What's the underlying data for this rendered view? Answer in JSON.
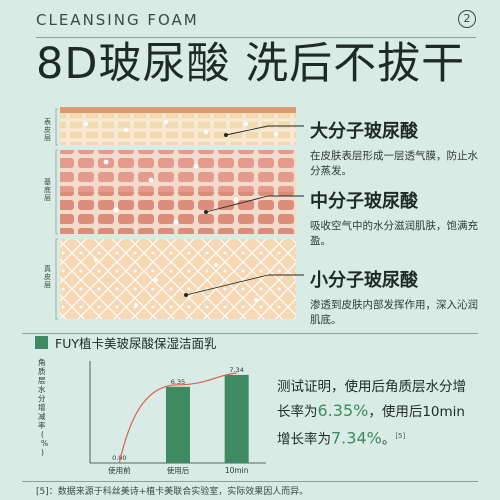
{
  "header": {
    "title": "CLEANSING FOAM",
    "page_number": "2"
  },
  "headline": "8D玻尿酸 洗后不拔干",
  "layers": [
    {
      "label": "表皮层"
    },
    {
      "label": "基底层"
    },
    {
      "label": "真皮层"
    }
  ],
  "callouts": [
    {
      "title": "大分子玻尿酸",
      "desc": "在皮肤表层形成一层透气膜，防止水分蒸发。"
    },
    {
      "title": "中分子玻尿酸",
      "desc": "吸收空气中的水分滋润肌肤，饱满充盈。"
    },
    {
      "title": "小分子玻尿酸",
      "desc": "渗透到皮肤内部发挥作用，深入沁润肌底。"
    }
  ],
  "product": {
    "name": "FUY植卡美玻尿酸保湿洁面乳"
  },
  "chart_data": {
    "type": "bar",
    "ylabel": "角质层水分增减率(%)",
    "categories": [
      "使用前",
      "使用后",
      "10min"
    ],
    "values": [
      0.0,
      6.35,
      7.34
    ],
    "value_labels": [
      "0.00",
      "6.35",
      "7.34"
    ],
    "ylim": [
      0,
      8.5
    ],
    "bar_color": "#3e8a62",
    "curve_color": "#e05a4b"
  },
  "result": {
    "line1": "测试证明，使用后角质层水分增长率为",
    "value1": "6.35%",
    "line2": "，使用后10min增长率为",
    "value2": "7.34%",
    "end": "。",
    "cite": "[5]"
  },
  "footer": "[5]：数据来源于科丝美诗+植卡美联合实验室，实际效果因人而异。",
  "colors": {
    "background": "#d8ebe4",
    "accent_green": "#3e8a62",
    "text": "#1e2a26"
  }
}
